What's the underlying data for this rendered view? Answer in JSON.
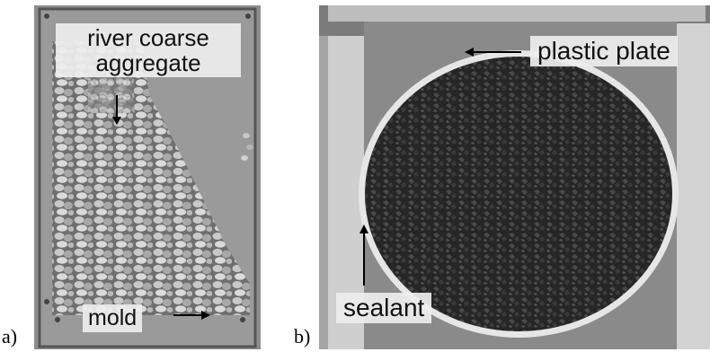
{
  "panels": {
    "a": {
      "letter": "a)",
      "labels": {
        "river": "river coarse\naggregate",
        "mold": "mold"
      }
    },
    "b": {
      "letter": "b)",
      "labels": {
        "plastic": "plastic plate",
        "sealant": "sealant"
      }
    }
  }
}
